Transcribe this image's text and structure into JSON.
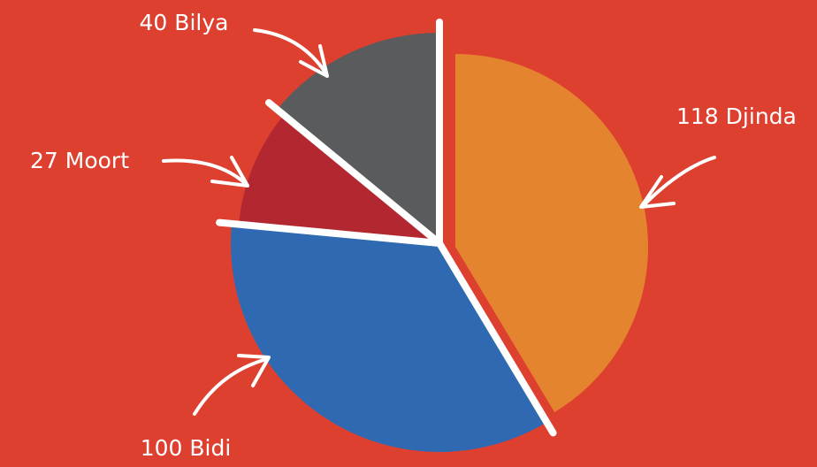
{
  "chart_data": {
    "type": "pie",
    "categories": [
      "Djinda",
      "Bidi",
      "Moort",
      "Bilya"
    ],
    "values": [
      118,
      100,
      27,
      40
    ],
    "colors": [
      "#e5842e",
      "#2f69b2",
      "#b32830",
      "#5a5b5c"
    ]
  }
}
